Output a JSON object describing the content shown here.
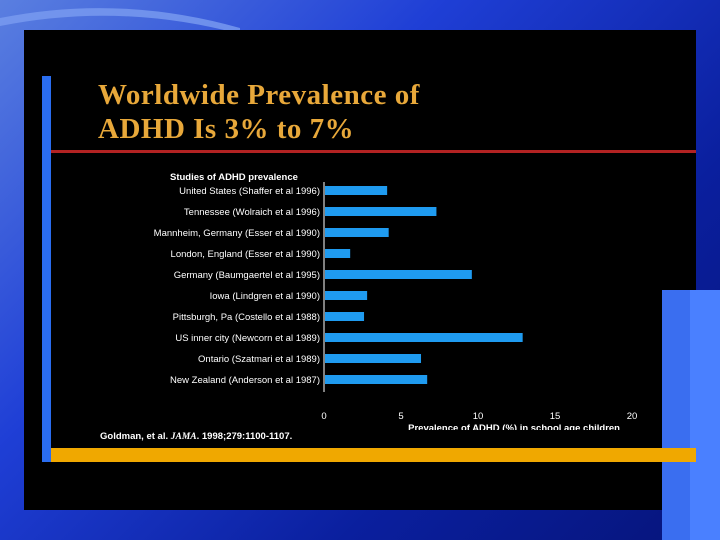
{
  "slide": {
    "title_line1": "Worldwide Prevalence of",
    "title_line2": "ADHD Is 3% to 7%",
    "citation_authors": "Goldman, et al.",
    "citation_journal": "JAMA",
    "citation_rest": ". 1998;279:1100-1107.",
    "colors": {
      "title": "#e8a83a",
      "bar": "#1f9bf0",
      "red_rule": "#b22222",
      "gold_rule": "#f0a800",
      "accent_blue": "#2a6df0"
    }
  },
  "chart_data": {
    "type": "bar",
    "orientation": "horizontal",
    "title": "Studies of ADHD prevalence",
    "xlabel": "Prevalence of ADHD (%) in school age children",
    "ylabel": "",
    "xlim": [
      0,
      20
    ],
    "xticks": [
      "0",
      "5",
      "10",
      "15",
      "20"
    ],
    "grid": false,
    "categories": [
      "United States (Shaffer et al 1996)",
      "Tennessee (Wolraich et al 1996)",
      "Mannheim, Germany (Esser et al 1990)",
      "London, England (Esser et al 1990)",
      "Germany (Baumgaertel et al 1995)",
      "Iowa (Lindgren et al 1990)",
      "Pittsburgh, Pa (Costello et al 1988)",
      "US inner city (Newcorn et al 1989)",
      "Ontario (Szatmari et al 1989)",
      "New Zealand (Anderson et al 1987)"
    ],
    "values": [
      4.1,
      7.3,
      4.2,
      1.7,
      9.6,
      2.8,
      2.6,
      12.9,
      6.3,
      6.7
    ]
  }
}
